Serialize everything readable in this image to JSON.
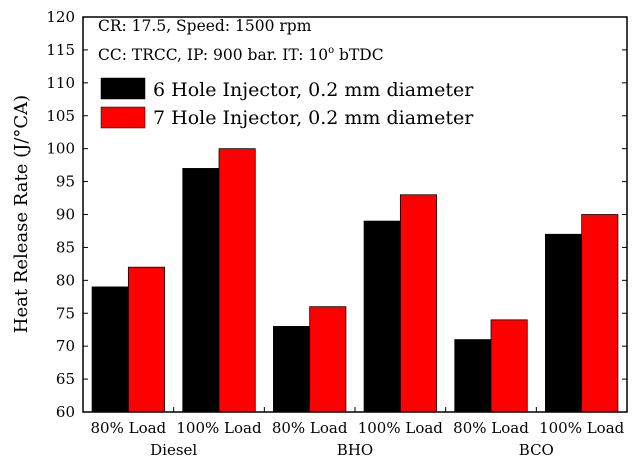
{
  "chart_data": {
    "type": "bar",
    "ylabel": "Heat Release Rate (J/°CA)",
    "xlabel": "",
    "ylim": [
      60,
      120
    ],
    "ytick_step": 5,
    "grid": false,
    "legend_position": "top-left",
    "annotations": {
      "line1": "CR: 17.5, Speed: 1500 rpm",
      "line2_prefix": "CC: TRCC, IP: 900 bar. IT: 10",
      "line2_degree": "o",
      "line2_suffix": " bTDC"
    },
    "groups": [
      "Diesel",
      "BHO",
      "BCO"
    ],
    "categories": [
      "80% Load",
      "100% Load",
      "80% Load",
      "100% Load",
      "80% Load",
      "100% Load"
    ],
    "series": [
      {
        "name": "6 Hole Injector, 0.2 mm diameter",
        "color": "#000000",
        "values": [
          79,
          97,
          73,
          89,
          71,
          87
        ]
      },
      {
        "name": "7 Hole Injector, 0.2 mm diameter",
        "color": "#ff0000",
        "values": [
          82,
          100,
          76,
          93,
          74,
          90
        ]
      }
    ]
  }
}
